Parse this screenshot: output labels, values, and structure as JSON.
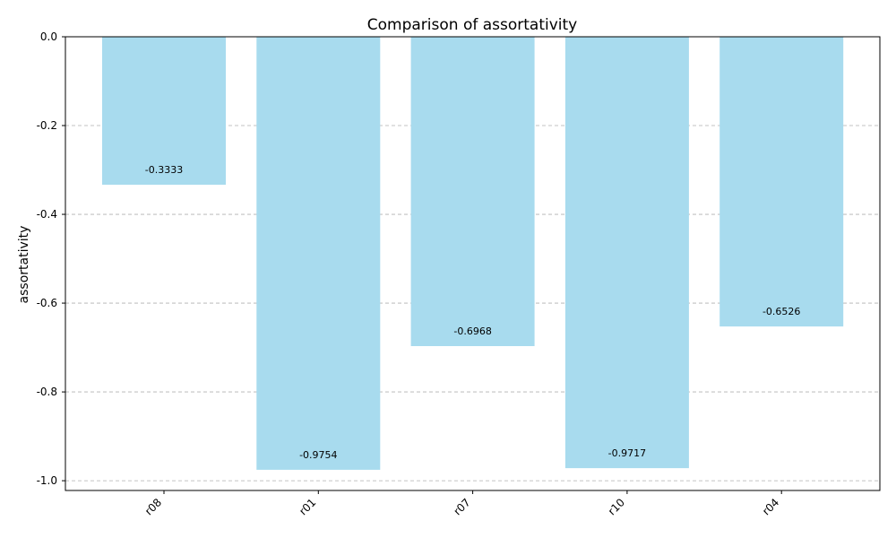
{
  "chart_data": {
    "type": "bar",
    "title": "Comparison of assortativity",
    "xlabel": "",
    "ylabel": "assortativity",
    "categories": [
      "r08",
      "r01",
      "r07",
      "r10",
      "r04"
    ],
    "values": [
      -0.3333,
      -0.9754,
      -0.6968,
      -0.9717,
      -0.6526
    ],
    "value_labels": [
      "-0.3333",
      "-0.9754",
      "-0.6968",
      "-0.9717",
      "-0.6526"
    ],
    "ylim": [
      -1.022,
      0.0
    ],
    "yticks": [
      0.0,
      -0.2,
      -0.4,
      -0.6,
      -0.8,
      -1.0
    ],
    "ytick_labels": [
      "0.0",
      "-0.2",
      "-0.4",
      "-0.6",
      "-0.8",
      "-1.0"
    ],
    "grid": true,
    "bar_color": "#a8dbee"
  }
}
